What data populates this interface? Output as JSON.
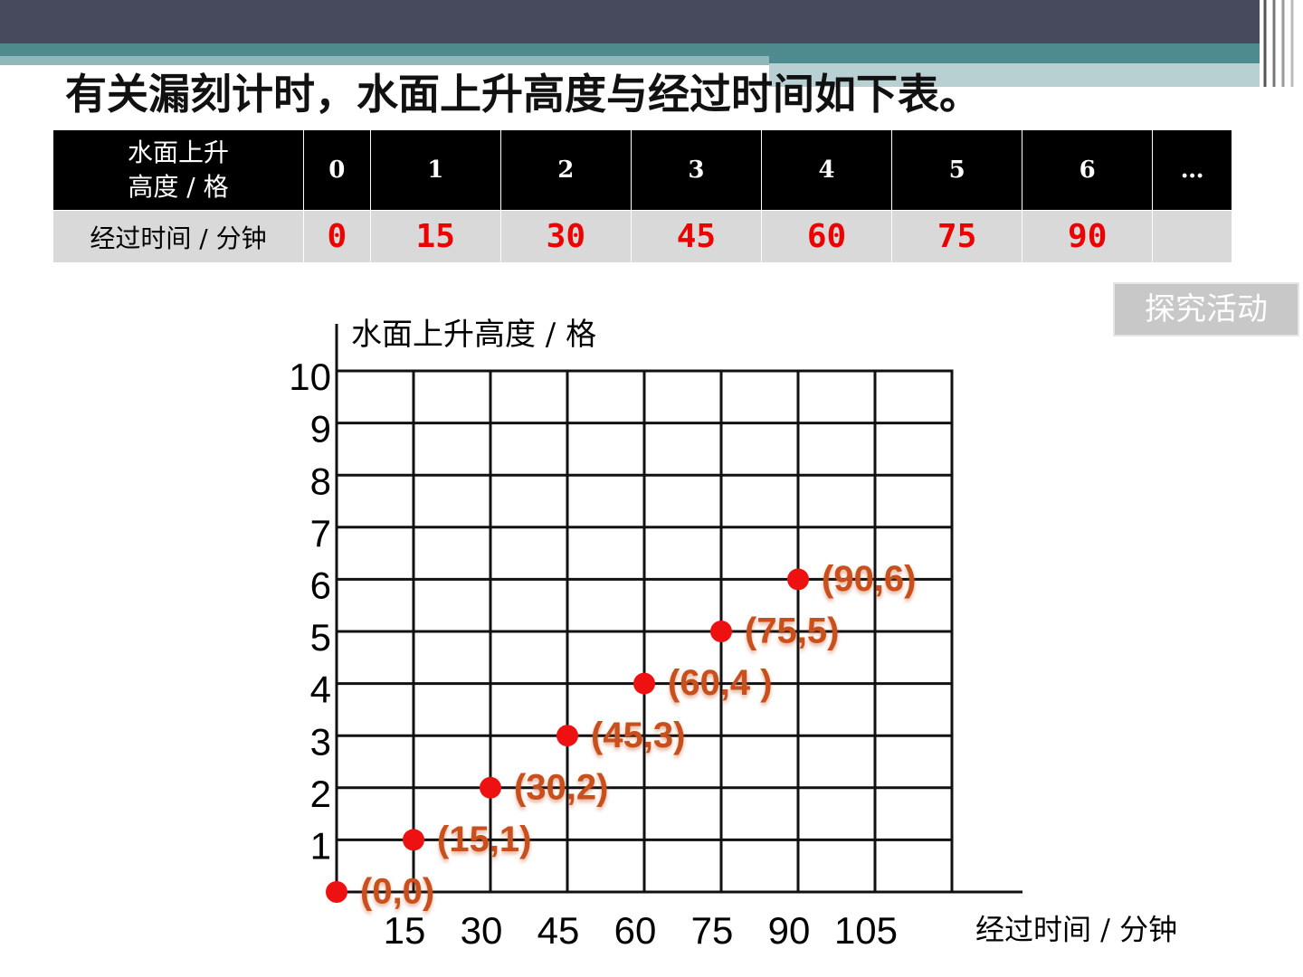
{
  "header": {
    "title": "有关漏刻计时，水面上升高度与经过时间如下表。"
  },
  "table": {
    "rows": [
      {
        "label": [
          "水面上升",
          "高度 / 格"
        ],
        "cells": [
          0,
          1,
          2,
          3,
          4,
          5,
          6,
          "…"
        ]
      },
      {
        "label": [
          "经过时间 / 分钟"
        ],
        "cells": [
          0,
          15,
          30,
          45,
          60,
          75,
          90
        ]
      }
    ]
  },
  "button": {
    "label": "探究活动"
  },
  "chart_data": {
    "type": "scatter",
    "y_label": "水面上升高度 / 格",
    "x_label": "经过时间 / 分钟",
    "x": [
      0,
      15,
      30,
      45,
      60,
      75,
      90
    ],
    "values": [
      0,
      1,
      2,
      3,
      4,
      5,
      6
    ],
    "value_labels": [
      "(0,0)",
      "(15,1)",
      "(30,2)",
      "(45,3)",
      "(60,4 )",
      "(75,5)",
      "(90,6)"
    ],
    "color": "#ee1111",
    "label_color": "#c9501c",
    "xlim": [
      0,
      120
    ],
    "xticks": [
      15,
      30,
      45,
      60,
      75,
      90,
      105
    ],
    "ylim": [
      0,
      10
    ],
    "yticks": [
      1,
      2,
      3,
      4,
      5,
      6,
      7,
      8,
      9,
      10
    ],
    "grid": true
  }
}
